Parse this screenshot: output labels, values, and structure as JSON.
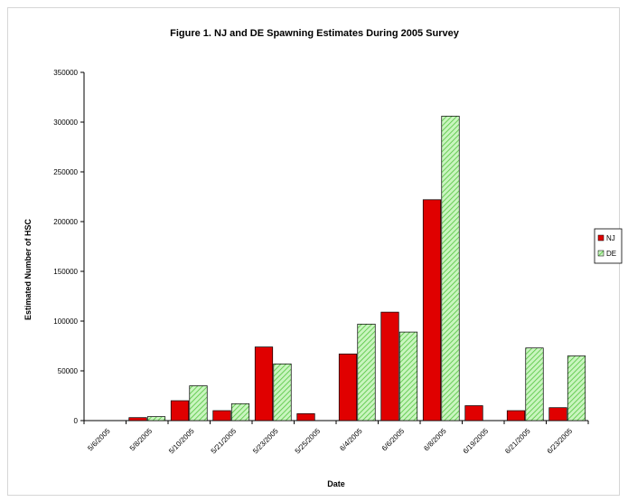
{
  "chart_data": {
    "type": "bar",
    "title": "Figure 1.  NJ and DE Spawning Estimates During 2005 Survey",
    "xlabel": "Date",
    "ylabel": "Estimated Number of HSC",
    "ylim": [
      0,
      350000
    ],
    "yticks": [
      "0",
      "50000",
      "100000",
      "150000",
      "200000",
      "250000",
      "300000",
      "350000"
    ],
    "categories": [
      "5/6/2005",
      "5/8/2005",
      "5/10/2005",
      "5/21/2005",
      "5/23/2005",
      "5/25/2005",
      "6/4/2005",
      "6/6/2005",
      "6/8/2005",
      "6/19/2005",
      "6/21/2005",
      "6/23/2005"
    ],
    "series": [
      {
        "name": "NJ",
        "color": "#e00000",
        "pattern": "solid",
        "values": [
          0,
          3000,
          20000,
          10000,
          74000,
          7000,
          67000,
          109000,
          222000,
          15000,
          10000,
          13000
        ]
      },
      {
        "name": "DE",
        "color": "#9bec8a",
        "pattern": "diagonal-hatch",
        "values": [
          0,
          4000,
          35000,
          17000,
          57000,
          0,
          97000,
          89000,
          306000,
          0,
          73000,
          65000
        ]
      }
    ],
    "grid": false,
    "legend": "right"
  }
}
